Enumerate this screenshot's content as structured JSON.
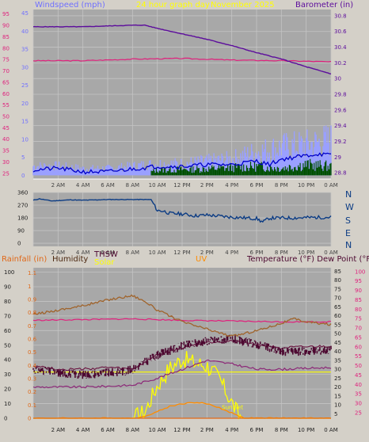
{
  "header": {
    "windspeed": "Windspeed (mph)",
    "period": "24 hour graph day",
    "date": "November 2025",
    "barometer": "Barometer (in)"
  },
  "middle": {
    "directions": [
      "N",
      "W",
      "S",
      "E",
      "N"
    ]
  },
  "bottom_header": {
    "rainfall": "Rainfall (in)",
    "humidity": "Humidity",
    "thsw": "THSW",
    "solar": "Solar",
    "uv": "UV",
    "temp": "Temperature (°F) Dew Point (°F)"
  },
  "annotations": {
    "sunset": "Sun Set"
  },
  "colors": {
    "plot_bg": "#a8a8a8",
    "grid": "#c4c4c4",
    "wind": "#9aa0ff",
    "gust": "#0000c8",
    "avg_wind": "#005000",
    "barometer": "#5c0c9c",
    "magenta": "#e0207c",
    "dir": "#0c3c84",
    "humidity": "#a0642c",
    "temperature": "#4c0830",
    "dewpoint": "#8c2878",
    "solar": "#ffff00",
    "uv": "#ff8c00",
    "rainfall": "#e06818",
    "header_blue": "#7070ff",
    "header_yellow": "#ffff00"
  },
  "chart_data": [
    {
      "type": "line",
      "name": "wind-barometer",
      "x_ticks": [
        "2 AM",
        "4 AM",
        "6 AM",
        "8 AM",
        "10 AM",
        "12 PM",
        "2 PM",
        "4 PM",
        "6 PM",
        "8 PM",
        "10 PM",
        "0 AM"
      ],
      "left_axis_1": [
        95,
        90,
        85,
        80,
        75,
        70,
        65,
        60,
        55,
        50,
        45,
        40,
        35,
        30,
        25
      ],
      "left_axis_2": [
        45,
        40,
        35,
        30,
        25,
        20,
        15,
        10,
        5,
        0
      ],
      "right_axis": [
        "30.8",
        "30.6",
        "30.4",
        "30.2",
        "30",
        "29.8",
        "29.6",
        "29.4",
        "29.2",
        "29",
        "28.8"
      ],
      "barometer_in": [
        [
          0,
          30.66
        ],
        [
          2,
          30.66
        ],
        [
          4,
          30.66
        ],
        [
          6,
          30.67
        ],
        [
          8,
          30.68
        ],
        [
          9,
          30.68
        ],
        [
          10,
          30.64
        ],
        [
          12,
          30.57
        ],
        [
          14,
          30.5
        ],
        [
          16,
          30.42
        ],
        [
          18,
          30.33
        ],
        [
          20,
          30.25
        ],
        [
          22,
          30.15
        ],
        [
          24,
          30.06
        ]
      ],
      "magenta_left": [
        [
          0,
          74.5
        ],
        [
          4,
          74.5
        ],
        [
          8,
          75.2
        ],
        [
          12,
          75.5
        ],
        [
          16,
          74.8
        ],
        [
          20,
          74.5
        ],
        [
          24,
          74
        ]
      ],
      "wind_gust_mph": [
        [
          0,
          1.5
        ],
        [
          2,
          2
        ],
        [
          4,
          1
        ],
        [
          6,
          1
        ],
        [
          8,
          1.8
        ],
        [
          10,
          2.5
        ],
        [
          12,
          2.5
        ],
        [
          14,
          3
        ],
        [
          16,
          3
        ],
        [
          18,
          4
        ],
        [
          19,
          3
        ],
        [
          20,
          4.5
        ],
        [
          22,
          5.5
        ],
        [
          23,
          6
        ],
        [
          24,
          5.5
        ]
      ],
      "wind_avg_mph": [
        [
          0,
          0.3
        ],
        [
          6,
          0.3
        ],
        [
          9,
          0.5
        ],
        [
          10,
          1.5
        ],
        [
          14,
          1.8
        ],
        [
          18,
          2.5
        ],
        [
          20,
          2
        ],
        [
          22,
          3
        ],
        [
          24,
          2.5
        ]
      ],
      "wind_speed_peak_mph": [
        [
          0,
          4
        ],
        [
          2,
          4
        ],
        [
          4,
          3
        ],
        [
          6,
          3
        ],
        [
          8,
          4
        ],
        [
          10,
          5
        ],
        [
          12,
          5
        ],
        [
          14,
          6
        ],
        [
          16,
          7
        ],
        [
          18,
          10
        ],
        [
          20,
          12
        ],
        [
          22,
          13
        ],
        [
          24,
          15
        ]
      ]
    },
    {
      "type": "line",
      "name": "wind-direction",
      "x_ticks": [
        "2 AM",
        "4 AM",
        "6 AM",
        "8 AM",
        "10 AM",
        "12 PM",
        "2 PM",
        "4 PM",
        "6 PM",
        "8 PM",
        "10 PM",
        "0 AM"
      ],
      "left_axis": [
        360,
        270,
        180,
        90,
        0
      ],
      "right_axis": [
        "N",
        "W",
        "S",
        "E",
        "N"
      ],
      "direction_deg": [
        [
          0,
          305
        ],
        [
          0.5,
          315
        ],
        [
          1.5,
          300
        ],
        [
          3,
          308
        ],
        [
          4,
          305
        ],
        [
          6,
          310
        ],
        [
          9.5,
          310
        ],
        [
          10,
          232
        ],
        [
          10.5,
          228
        ],
        [
          11,
          212
        ],
        [
          12,
          208
        ],
        [
          13,
          195
        ],
        [
          14,
          200
        ],
        [
          16,
          185
        ],
        [
          18,
          175
        ],
        [
          18.5,
          150
        ],
        [
          19,
          178
        ],
        [
          21,
          180
        ],
        [
          24,
          185
        ]
      ]
    },
    {
      "type": "line",
      "name": "temperature-humidity-solar",
      "x_ticks": [
        "2 AM",
        "4 AM",
        "6 AM",
        "8 AM",
        "10 AM",
        "12 PM",
        "2 PM",
        "4 PM",
        "6 PM",
        "8 PM",
        "10 PM",
        "0 AM"
      ],
      "rain_axis": [
        "1.1",
        "1",
        "0.9",
        "0.8",
        "0.7",
        "0.6",
        "0.5",
        "0.4",
        "0.3",
        "0.2",
        "0.1",
        "0"
      ],
      "humidity_axis": [
        100,
        90,
        80,
        70,
        60,
        50,
        40,
        30,
        20,
        10,
        0
      ],
      "temp_axis_1": [
        85,
        80,
        75,
        70,
        65,
        60,
        55,
        50,
        45,
        40,
        35,
        30,
        25,
        20,
        15,
        10,
        5
      ],
      "temp_axis_2": [
        100,
        95,
        90,
        85,
        80,
        75,
        70,
        65,
        60,
        55,
        50,
        45,
        40,
        35,
        30,
        25
      ],
      "humidity_pct": [
        [
          0,
          71
        ],
        [
          2,
          74
        ],
        [
          4,
          77
        ],
        [
          6,
          81
        ],
        [
          8,
          84
        ],
        [
          9,
          80
        ],
        [
          10,
          74
        ],
        [
          12,
          66
        ],
        [
          14,
          61
        ],
        [
          16,
          56
        ],
        [
          18,
          60
        ],
        [
          20,
          65
        ],
        [
          21,
          68
        ],
        [
          22,
          66
        ],
        [
          24,
          64
        ]
      ],
      "magenta_pct": [
        [
          0,
          67
        ],
        [
          4,
          67.5
        ],
        [
          8,
          68
        ],
        [
          12,
          67
        ],
        [
          16,
          66.5
        ],
        [
          20,
          66
        ],
        [
          24,
          66
        ]
      ],
      "temperature_f": [
        [
          0,
          30
        ],
        [
          2,
          28
        ],
        [
          4,
          27
        ],
        [
          6,
          28
        ],
        [
          7.5,
          29
        ],
        [
          8,
          30
        ],
        [
          10,
          38
        ],
        [
          12,
          43
        ],
        [
          14,
          46
        ],
        [
          16,
          47
        ],
        [
          18,
          44
        ],
        [
          20,
          40
        ],
        [
          22,
          40
        ],
        [
          24,
          41
        ]
      ],
      "thsw_f": [
        [
          0,
          32
        ],
        [
          2,
          30
        ],
        [
          4,
          30
        ],
        [
          6,
          31
        ],
        [
          8,
          30
        ],
        [
          10,
          38
        ],
        [
          12,
          42
        ],
        [
          14,
          45
        ],
        [
          16,
          46
        ],
        [
          18,
          44
        ],
        [
          20,
          42
        ],
        [
          24,
          43
        ]
      ],
      "dewpoint_f": [
        [
          0,
          20
        ],
        [
          4,
          20
        ],
        [
          8,
          21
        ],
        [
          10,
          25
        ],
        [
          12,
          30
        ],
        [
          14,
          35
        ],
        [
          16,
          33
        ],
        [
          18,
          30
        ],
        [
          20,
          30
        ],
        [
          24,
          31
        ]
      ],
      "solar_w_m2": [
        [
          0,
          0
        ],
        [
          8,
          0
        ],
        [
          9,
          0.05
        ],
        [
          10,
          0.25
        ],
        [
          11,
          0.38
        ],
        [
          12,
          0.45
        ],
        [
          13,
          0.42
        ],
        [
          14,
          0.4
        ],
        [
          15,
          0.3
        ],
        [
          16,
          0.12
        ],
        [
          16.5,
          0.03
        ],
        [
          17,
          0
        ],
        [
          24,
          0
        ]
      ],
      "uv_index": [
        [
          0,
          0
        ],
        [
          8.5,
          0
        ],
        [
          10,
          0.05
        ],
        [
          11,
          0.09
        ],
        [
          12,
          0.11
        ],
        [
          13,
          0.12
        ],
        [
          14,
          0.11
        ],
        [
          15,
          0.08
        ],
        [
          16,
          0.04
        ],
        [
          17,
          0
        ],
        [
          24,
          0
        ]
      ],
      "rain_in": [
        [
          0,
          0
        ],
        [
          24,
          0
        ]
      ],
      "solar_max_line": 0.35
    }
  ]
}
